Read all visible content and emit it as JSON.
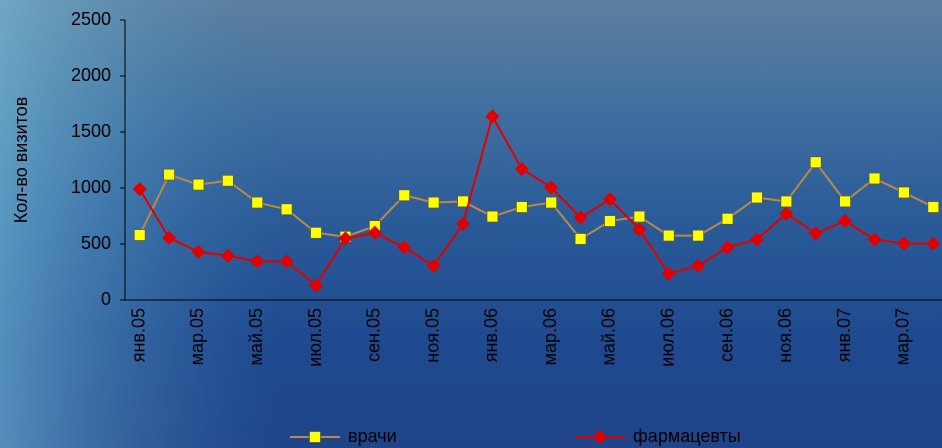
{
  "chart_data": {
    "type": "line",
    "y_label": "Кол-во визитов",
    "categories": [
      "янв.05",
      null,
      "мар.05",
      null,
      "май.05",
      null,
      "июл.05",
      null,
      "сен.05",
      null,
      "ноя.05",
      null,
      "янв.06",
      null,
      "мар.06",
      null,
      "май.06",
      null,
      "июл.06",
      null,
      "сен.06",
      null,
      "ноя.06",
      null,
      "янв.07",
      null,
      "мар.07",
      null
    ],
    "series": [
      {
        "name": "врачи",
        "color": "#ffff00",
        "line_color": "#b88a4a",
        "marker": "square",
        "values": [
          580,
          1120,
          1030,
          1065,
          870,
          810,
          600,
          565,
          660,
          935,
          870,
          880,
          745,
          830,
          870,
          545,
          705,
          745,
          575,
          575,
          725,
          915,
          880,
          1230,
          880,
          1085,
          960,
          830
        ]
      },
      {
        "name": "фармацевты",
        "color": "#e00000",
        "line_color": "#e00000",
        "marker": "diamond",
        "values": [
          990,
          555,
          430,
          395,
          345,
          345,
          130,
          550,
          600,
          470,
          305,
          680,
          1640,
          1170,
          1005,
          735,
          900,
          630,
          235,
          305,
          470,
          540,
          770,
          595,
          705,
          540,
          505,
          505
        ]
      }
    ],
    "ylim": [
      0,
      2500
    ],
    "yticks": [
      0,
      500,
      1000,
      1500,
      2000,
      2500
    ]
  }
}
